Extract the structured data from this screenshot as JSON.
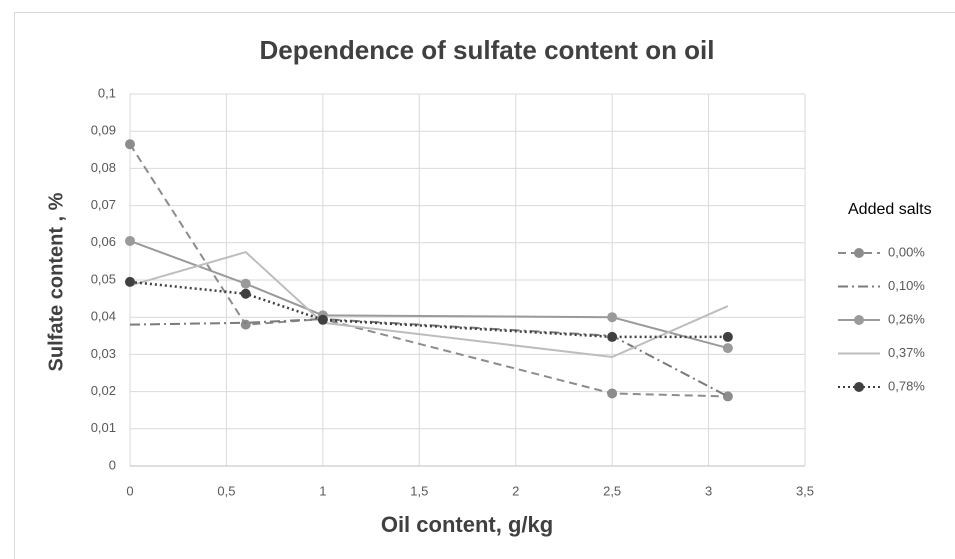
{
  "chart_data": {
    "type": "line",
    "title": "Dependence of sulfate content on oil",
    "x_label": "Oil content, g/kg",
    "y_label": "Sulfate content , %",
    "legend_title": "Added salts",
    "legend": "right",
    "grid": true,
    "x": [
      0,
      0.6,
      1,
      2.5,
      3.1
    ],
    "xlim": [
      0,
      3.5
    ],
    "xticks": [
      0,
      {
        "value": 0.5,
        "label": "0,5"
      },
      1,
      {
        "value": 1.5,
        "label": "1,5"
      },
      2,
      {
        "value": 2.5,
        "label": "2,5"
      },
      3,
      {
        "value": 3.5,
        "label": "3,5"
      }
    ],
    "ylim": [
      0,
      0.1
    ],
    "yticks": [
      0,
      {
        "value": 0.01,
        "label": "0,01"
      },
      {
        "value": 0.02,
        "label": "0,02"
      },
      {
        "value": 0.03,
        "label": "0,03"
      },
      {
        "value": 0.04,
        "label": "0,04"
      },
      {
        "value": 0.05,
        "label": "0,05"
      },
      {
        "value": 0.06,
        "label": "0,06"
      },
      {
        "value": 0.07,
        "label": "0,07"
      },
      {
        "value": 0.08,
        "label": "0,08"
      },
      {
        "value": 0.09,
        "label": "0,09"
      },
      {
        "value": 0.1,
        "label": "0,1"
      }
    ],
    "series": [
      {
        "name": "0,00%",
        "color": "#8c8c8c",
        "line_style": "dashed",
        "marker": true,
        "values": [
          0.0865,
          0.038,
          0.0395,
          0.0195,
          0.0187
        ]
      },
      {
        "name": "0,10%",
        "color": "#7a7a7a",
        "line_style": "dashdot",
        "marker": false,
        "values": [
          0.038,
          0.0385,
          0.0395,
          0.035,
          0.0187
        ]
      },
      {
        "name": "0,26%",
        "color": "#9a9a9a",
        "line_style": "solid",
        "marker": true,
        "values": [
          0.0605,
          0.049,
          0.0405,
          0.04,
          0.0317
        ]
      },
      {
        "name": "0,37%",
        "color": "#bdbdbd",
        "line_style": "solid",
        "marker": false,
        "values": [
          0.0485,
          0.0575,
          0.0385,
          0.0293,
          0.043
        ]
      },
      {
        "name": "0,78%",
        "color": "#404040",
        "line_style": "dotted",
        "marker": true,
        "values": [
          0.0495,
          0.0463,
          0.0393,
          0.0347,
          0.0347
        ]
      }
    ]
  }
}
